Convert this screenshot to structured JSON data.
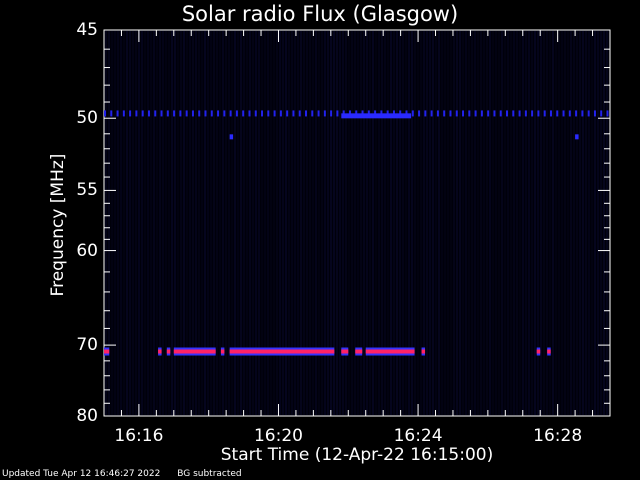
{
  "chart_data": {
    "type": "heatmap",
    "title": "Solar radio Flux (Glasgow)",
    "ylabel": "Frequency [MHz]",
    "xlabel": "Start Time (12-Apr-22 16:15:00)",
    "y_scale": "reciprocal",
    "ylim": [
      45,
      80
    ],
    "y_ticks": [
      45,
      50,
      55,
      60,
      70,
      80
    ],
    "x_ticks": [
      "16:16",
      "16:20",
      "16:24",
      "16:28"
    ],
    "x_tick_minutes": [
      16.0,
      20.0,
      24.0,
      28.0
    ],
    "xlim_minutes": [
      15.0,
      29.5
    ],
    "grid": false,
    "features": [
      {
        "name": "band-49.7",
        "freq": 49.7,
        "type": "dashed",
        "from": 15.0,
        "to": 29.5,
        "color": "#2222ee"
      },
      {
        "name": "band-49.8-solid",
        "freq": 49.85,
        "type": "solid",
        "from": 21.8,
        "to": 23.8,
        "color": "#2a2aff"
      },
      {
        "name": "spot-51.2-a",
        "freq": 51.2,
        "type": "spot",
        "from": 18.6,
        "to": 18.7,
        "color": "#2a2aff"
      },
      {
        "name": "spot-51.2-b",
        "freq": 51.2,
        "type": "spot",
        "from": 28.5,
        "to": 28.6,
        "color": "#2a2aff"
      },
      {
        "name": "band-70.8",
        "freq": 70.8,
        "type": "segments",
        "segments": [
          [
            15.0,
            15.15
          ],
          [
            16.55,
            16.65
          ],
          [
            16.8,
            16.9
          ],
          [
            17.0,
            18.2
          ],
          [
            18.35,
            18.45
          ],
          [
            18.6,
            21.6
          ],
          [
            21.8,
            22.0
          ],
          [
            22.2,
            22.4
          ],
          [
            22.5,
            23.9
          ],
          [
            24.1,
            24.2
          ],
          [
            27.4,
            27.5
          ],
          [
            27.7,
            27.8
          ]
        ],
        "color": "#ff2266",
        "edge": "#3333ff"
      }
    ]
  },
  "footer": {
    "updated": "Updated Tue Apr 12 16:46:27 2022",
    "note": "BG subtracted"
  }
}
